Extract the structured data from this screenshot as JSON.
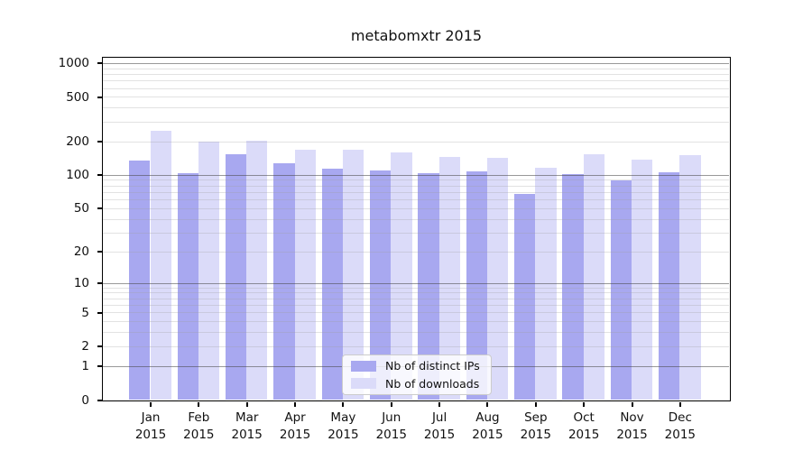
{
  "title": "metabomxtr 2015",
  "chart_data": {
    "type": "bar",
    "title": "metabomxtr 2015",
    "categories": [
      "Jan",
      "Feb",
      "Mar",
      "Apr",
      "May",
      "Jun",
      "Jul",
      "Aug",
      "Sep",
      "Oct",
      "Nov",
      "Dec"
    ],
    "category_year": "2015",
    "series": [
      {
        "name": "Nb of distinct IPs",
        "color": "#a8a8f0",
        "values": [
          135,
          103,
          152,
          128,
          113,
          110,
          104,
          107,
          67,
          102,
          89,
          106
        ]
      },
      {
        "name": "Nb of downloads",
        "color": "#dbdbf9",
        "values": [
          250,
          197,
          204,
          169,
          169,
          160,
          145,
          143,
          115,
          153,
          137,
          150
        ]
      }
    ],
    "y_axis": {
      "scale": "log1p",
      "tick_labels": [
        0,
        1,
        2,
        5,
        10,
        20,
        50,
        100,
        200,
        500,
        1000
      ],
      "major_gridlines": [
        1,
        10,
        100,
        1000
      ],
      "minor_gridlines": [
        2,
        3,
        4,
        5,
        6,
        7,
        8,
        9,
        20,
        30,
        40,
        50,
        60,
        70,
        80,
        90,
        200,
        300,
        400,
        500,
        600,
        700,
        800,
        900
      ],
      "ylim_top": 1250
    },
    "legend": {
      "position": "lower center",
      "entries": [
        "Nb of distinct IPs",
        "Nb of downloads"
      ]
    },
    "grid": true
  },
  "colors": {
    "bar_distinct_ips": "#a8a8f0",
    "bar_downloads": "#dbdbf9",
    "spine": "#000000",
    "major_grid": "#999999",
    "minor_grid": "#e8e8e8",
    "background": "#ffffff"
  }
}
